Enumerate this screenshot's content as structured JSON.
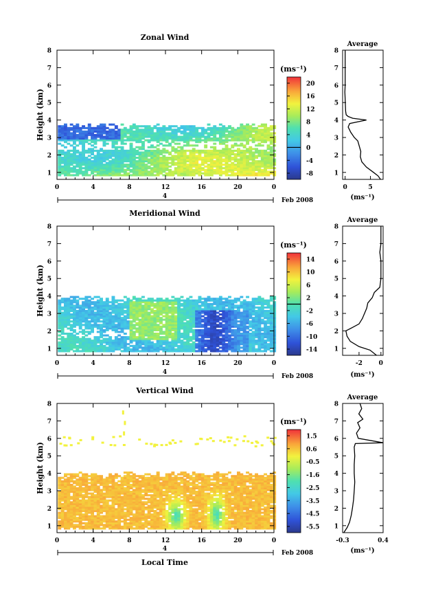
{
  "figure": {
    "date_label": "Feb 2008",
    "xlabel_bottom": "Local Time",
    "ylabel": "Height (km)",
    "unit_label": "(ms⁻¹)",
    "avg_title": "Average",
    "day_label": "4"
  },
  "chart_data": [
    {
      "type": "heatmap",
      "title": "Zonal Wind",
      "x_ticks": [
        "0",
        "4",
        "8",
        "12",
        "16",
        "20",
        "0"
      ],
      "x_range": [
        0,
        24
      ],
      "y_ticks": [
        "1",
        "2",
        "3",
        "4",
        "5",
        "6",
        "7",
        "8"
      ],
      "y_range": [
        0.6,
        8
      ],
      "colorbar_ticks": [
        "20",
        "16",
        "12",
        "8",
        "4",
        "0",
        "-4",
        "-8"
      ],
      "colorbar_range": [
        -10,
        22
      ],
      "contour_level": 0,
      "data_top_km": 3.8,
      "average_profile": {
        "title": "Average",
        "xlabel": "(ms⁻¹)",
        "x_ticks": [
          "0",
          "5"
        ],
        "x_range": [
          -0.5,
          7.5
        ],
        "height_km": [
          0.6,
          0.8,
          1.0,
          1.3,
          1.6,
          1.9,
          2.2,
          2.5,
          2.8,
          3.0,
          3.3,
          3.6,
          3.8,
          4.0,
          4.1,
          4.2,
          4.3,
          4.5,
          4.8,
          5.2,
          5.6,
          6.0,
          6.3,
          6.7,
          7.0,
          7.4,
          7.8,
          8.0
        ],
        "value": [
          7.0,
          6.5,
          5.6,
          4.2,
          3.3,
          3.0,
          3.1,
          2.8,
          2.5,
          1.8,
          1.1,
          0.6,
          0.9,
          4.2,
          1.5,
          0.6,
          0.2,
          0.1,
          0.05,
          0,
          -0.05,
          0,
          0,
          0,
          0,
          0,
          0,
          0
        ]
      }
    },
    {
      "type": "heatmap",
      "title": "Meridional Wind",
      "x_ticks": [
        "0",
        "4",
        "8",
        "12",
        "16",
        "20",
        "0"
      ],
      "x_range": [
        0,
        24
      ],
      "y_ticks": [
        "1",
        "2",
        "3",
        "4",
        "5",
        "6",
        "7",
        "8"
      ],
      "y_range": [
        0.6,
        8
      ],
      "colorbar_ticks": [
        "14",
        "10",
        "6",
        "2",
        "-2",
        "-6",
        "-10",
        "-14"
      ],
      "colorbar_range": [
        -16,
        16
      ],
      "contour_level": 0,
      "data_top_km": 4.0,
      "average_profile": {
        "title": "Average",
        "xlabel": "(ms⁻¹)",
        "x_ticks": [
          "-2",
          "0"
        ],
        "x_range": [
          -3.5,
          0.2
        ],
        "height_km": [
          0.6,
          0.9,
          1.1,
          1.4,
          1.7,
          2.0,
          2.2,
          2.4,
          2.7,
          3.0,
          3.3,
          3.6,
          3.9,
          4.2,
          4.5,
          5.0,
          5.5,
          6.0,
          6.5,
          7.0,
          7.5,
          8.0
        ],
        "value": [
          -0.4,
          -1.0,
          -2.0,
          -2.8,
          -3.1,
          -3.2,
          -2.6,
          -2.0,
          -1.7,
          -1.5,
          -1.3,
          -1.2,
          -0.8,
          -0.6,
          -0.1,
          0.0,
          0.0,
          0.0,
          -0.1,
          0.0,
          0.0,
          0.0
        ]
      }
    },
    {
      "type": "heatmap",
      "title": "Vertical Wind",
      "x_ticks": [
        "0",
        "4",
        "8",
        "12",
        "16",
        "20",
        "0"
      ],
      "x_range": [
        0,
        24
      ],
      "y_ticks": [
        "1",
        "2",
        "3",
        "4",
        "5",
        "6",
        "7",
        "8"
      ],
      "y_range": [
        0.6,
        8
      ],
      "colorbar_ticks": [
        "1.5",
        "0.6",
        "-0.5",
        "-1.6",
        "-2.5",
        "-3.5",
        "-4.5",
        "-5.5"
      ],
      "colorbar_range": [
        -6,
        2
      ],
      "data_top_km": 4.1,
      "average_profile": {
        "title": "Average",
        "xlabel": "(ms⁻¹)",
        "x_ticks": [
          "-0.3",
          "0.4"
        ],
        "x_range": [
          -0.3,
          0.4
        ],
        "height_km": [
          0.6,
          0.9,
          1.2,
          1.6,
          2.0,
          2.5,
          3.0,
          3.5,
          4.0,
          4.5,
          5.0,
          5.5,
          5.7,
          5.75,
          6.0,
          6.3,
          6.6,
          6.9,
          7.1,
          7.4,
          7.7,
          8.0
        ],
        "value": [
          -0.28,
          -0.22,
          -0.18,
          -0.15,
          -0.13,
          -0.11,
          -0.1,
          -0.09,
          -0.1,
          -0.1,
          -0.09,
          -0.1,
          -0.08,
          0.4,
          -0.03,
          -0.06,
          0.0,
          -0.04,
          0.05,
          -0.02,
          0.03,
          0.0
        ]
      }
    }
  ]
}
